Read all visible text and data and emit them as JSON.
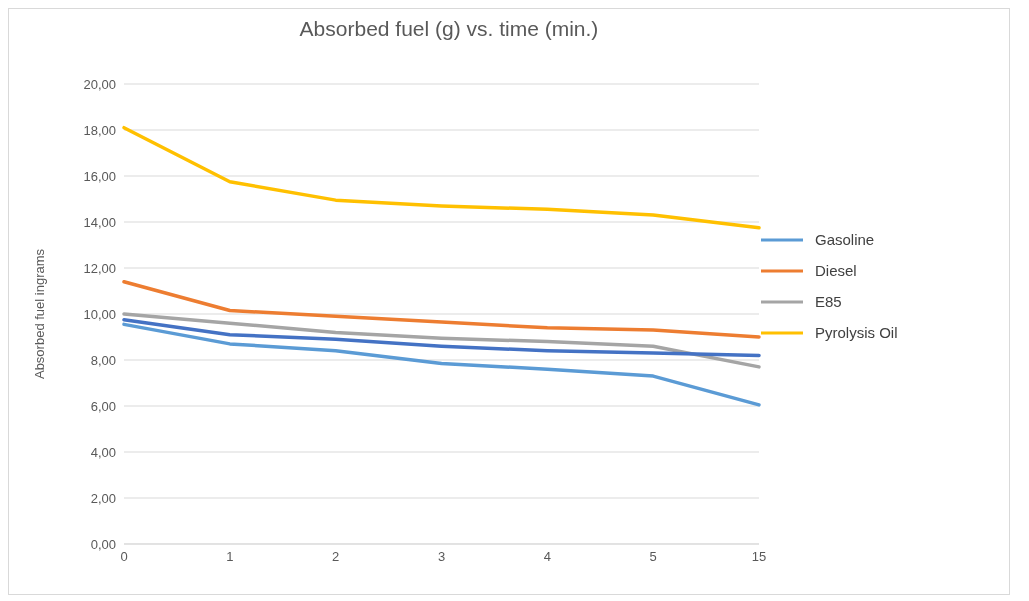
{
  "chart_data": {
    "type": "line",
    "title": "Absorbed fuel (g) vs. time (min.)",
    "ylabel": "Absorbed fuel ingrams",
    "categories": [
      "0",
      "1",
      "2",
      "3",
      "4",
      "5",
      "15"
    ],
    "series": [
      {
        "name": "Gasoline",
        "color": "#5b9bd5",
        "values": [
          9.55,
          8.7,
          8.4,
          7.85,
          7.6,
          7.3,
          6.05
        ]
      },
      {
        "name": "Diesel",
        "color": "#ed7d31",
        "values": [
          11.4,
          10.15,
          9.9,
          9.65,
          9.4,
          9.3,
          9.0
        ]
      },
      {
        "name": "E85",
        "color": "#a5a5a5",
        "values": [
          10.0,
          9.6,
          9.2,
          8.95,
          8.8,
          8.6,
          7.7
        ]
      },
      {
        "name": "Pyrolysis Oil",
        "color": "#ffc000",
        "values": [
          18.1,
          15.75,
          14.95,
          14.7,
          14.55,
          14.3,
          13.75
        ]
      },
      {
        "color": "#4472c4",
        "values": [
          9.75,
          9.1,
          8.9,
          8.6,
          8.4,
          8.3,
          8.2
        ]
      }
    ],
    "ylim": [
      0,
      20
    ],
    "yticks": [
      {
        "value": 0,
        "label": "0,00"
      },
      {
        "value": 2,
        "label": "2,00"
      },
      {
        "value": 4,
        "label": "4,00"
      },
      {
        "value": 6,
        "label": "6,00"
      },
      {
        "value": 8,
        "label": "8,00"
      },
      {
        "value": 10,
        "label": "10,00"
      },
      {
        "value": 12,
        "label": "12,00"
      },
      {
        "value": 14,
        "label": "14,00"
      },
      {
        "value": 16,
        "label": "16,00"
      },
      {
        "value": 18,
        "label": "18,00"
      },
      {
        "value": 20,
        "label": "20,00"
      }
    ],
    "grid": "y",
    "legend": "right",
    "marker": "none",
    "line_style": "solid"
  }
}
